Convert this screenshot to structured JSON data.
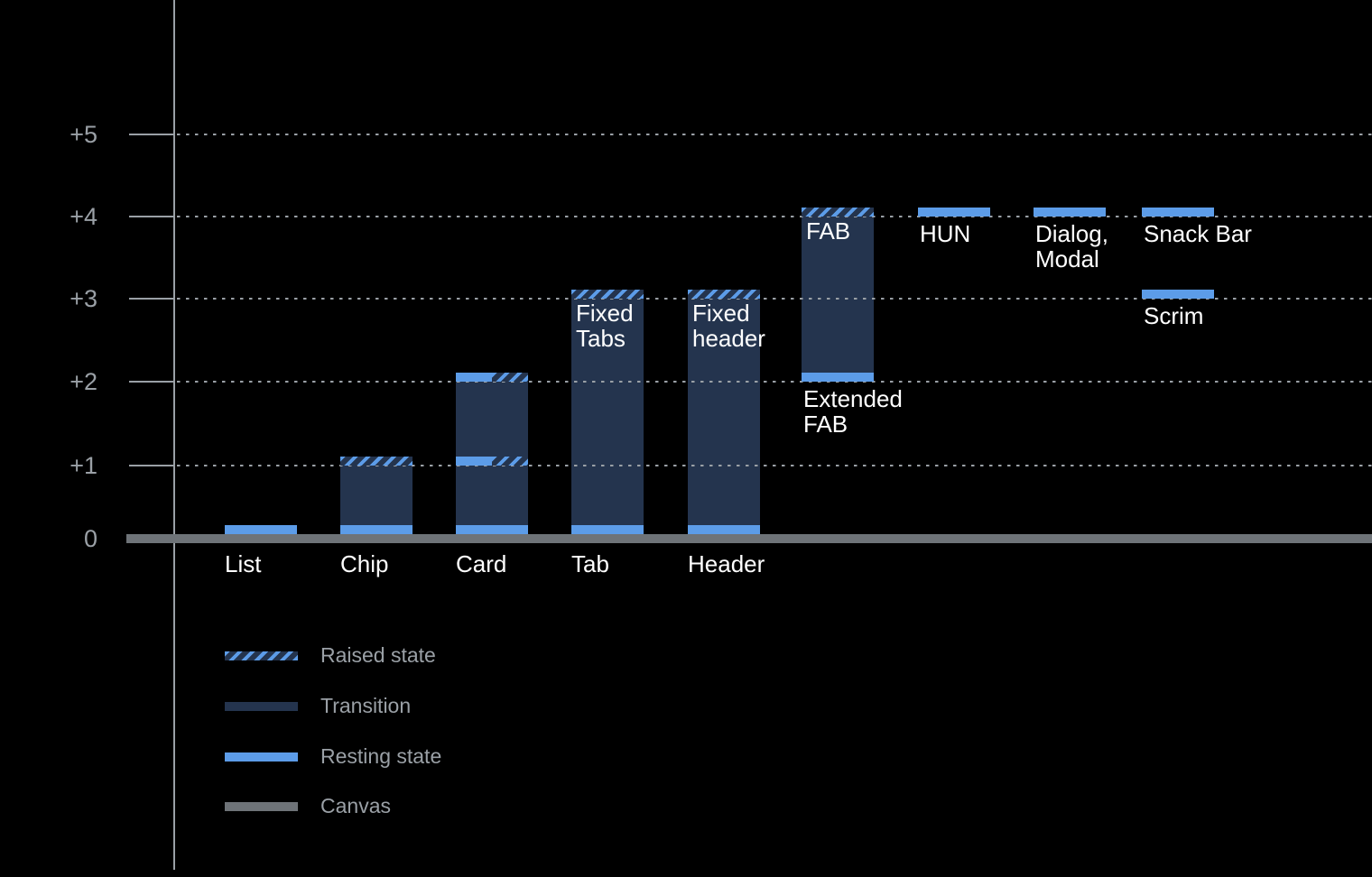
{
  "colors": {
    "background": "#000000",
    "resting_blue": "#5C9CE8",
    "transition_navy": "#24344E",
    "canvas_gray": "#6E7378",
    "axis_gray": "#9AA0A6",
    "label_white": "#FFFFFF"
  },
  "chart_data": {
    "type": "bar",
    "subtype": "elevation-range-diagram",
    "y_ticks": [
      {
        "label": "+5",
        "level": 5
      },
      {
        "label": "+4",
        "level": 4
      },
      {
        "label": "+3",
        "level": 3
      },
      {
        "label": "+2",
        "level": 2
      },
      {
        "label": "+1",
        "level": 1
      },
      {
        "label": "0",
        "level": 0
      }
    ],
    "gridlines_at_levels": [
      1,
      2,
      3,
      4,
      5
    ],
    "grid_style": "dotted",
    "ylim": [
      0,
      5
    ],
    "components": [
      {
        "name": "list",
        "axis_label": "List",
        "resting": 0
      },
      {
        "name": "chip",
        "axis_label": "Chip",
        "resting": 0,
        "raised": 1
      },
      {
        "name": "card",
        "axis_label": "Card",
        "resting": 0,
        "top": 2,
        "combo_levels": [
          1,
          2
        ]
      },
      {
        "name": "fixed-tabs",
        "axis_label": "Tab",
        "resting": 0,
        "raised": 3,
        "bar_label": [
          "Fixed",
          "Tabs"
        ]
      },
      {
        "name": "fixed-header",
        "axis_label": "Header",
        "resting": 0,
        "raised": 3,
        "bar_label": [
          "Fixed",
          "header"
        ]
      },
      {
        "name": "fab",
        "resting": 2,
        "raised": 4,
        "bar_label": [
          "FAB"
        ],
        "note": [
          "Extended",
          "FAB"
        ],
        "note_level": 2
      },
      {
        "name": "hun",
        "resting": 4,
        "note": [
          "HUN"
        ],
        "note_level": 4
      },
      {
        "name": "dialog-modal",
        "resting": 4,
        "note": [
          "Dialog,",
          "Modal"
        ],
        "note_level": 4
      },
      {
        "name": "snack-bar",
        "resting": 4,
        "note": [
          "Snack Bar"
        ],
        "note_level": 4
      },
      {
        "name": "scrim",
        "resting": 3,
        "note": [
          "Scrim"
        ],
        "note_level": 3
      }
    ],
    "legend": [
      {
        "id": "raised",
        "label": "Raised state"
      },
      {
        "id": "transition",
        "label": "Transition"
      },
      {
        "id": "resting",
        "label": "Resting state"
      },
      {
        "id": "canvas",
        "label": "Canvas"
      }
    ],
    "legend_position": "bottom-left"
  }
}
